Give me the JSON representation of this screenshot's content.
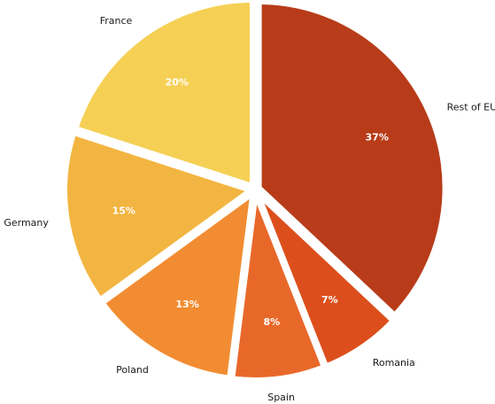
{
  "chart_data": {
    "type": "pie",
    "title": "",
    "start": "top",
    "direction": "clockwise",
    "legend": "none",
    "slices": [
      {
        "label": "Rest of EU",
        "value": 37,
        "value_label": "37%",
        "color": "#b83c19"
      },
      {
        "label": "Romania",
        "value": 7,
        "value_label": "7%",
        "color": "#dc4f1c"
      },
      {
        "label": "Spain",
        "value": 8,
        "value_label": "8%",
        "color": "#e8682a"
      },
      {
        "label": "Poland",
        "value": 13,
        "value_label": "13%",
        "color": "#f28c32"
      },
      {
        "label": "Germany",
        "value": 15,
        "value_label": "15%",
        "color": "#f3b541"
      },
      {
        "label": "France",
        "value": 20,
        "value_label": "20%",
        "color": "#f6d055"
      }
    ]
  }
}
